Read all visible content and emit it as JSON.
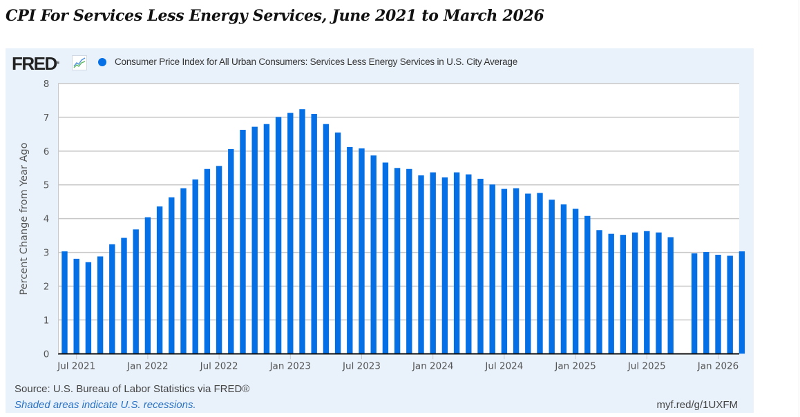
{
  "page": {
    "title": "CPI For Services Less Energy Services, June 2021 to March 2026"
  },
  "fred": {
    "logo_text": "FRED",
    "logo_mark": "®",
    "icon": "line-chart-icon",
    "legend_label": "Consumer Price Index for All Urban Consumers: Services Less Energy Services in U.S. City Average",
    "series_color": "#0570e6",
    "source_text": "Source: U.S. Bureau of Labor Statistics via FRED®",
    "recession_note": "Shaded areas indicate U.S. recessions.",
    "short_link": "myf.red/g/1UXFM"
  },
  "chart_data": {
    "type": "bar",
    "title": "CPI For Services Less Energy Services, June 2021 to March 2026",
    "xlabel": "",
    "ylabel": "Percent Change from Year Ago",
    "ylim": [
      0,
      8
    ],
    "yticks": [
      0,
      1,
      2,
      3,
      4,
      5,
      6,
      7,
      8
    ],
    "grid": true,
    "legend": "top-left",
    "x_tick_labels": [
      "Jul 2021",
      "Jan 2022",
      "Jul 2022",
      "Jan 2023",
      "Jul 2023",
      "Jan 2024",
      "Jul 2024",
      "Jan 2025",
      "Jul 2025",
      "Jan 2026"
    ],
    "categories": [
      "Jun 2021",
      "Jul 2021",
      "Aug 2021",
      "Sep 2021",
      "Oct 2021",
      "Nov 2021",
      "Dec 2021",
      "Jan 2022",
      "Feb 2022",
      "Mar 2022",
      "Apr 2022",
      "May 2022",
      "Jun 2022",
      "Jul 2022",
      "Aug 2022",
      "Sep 2022",
      "Oct 2022",
      "Nov 2022",
      "Dec 2022",
      "Jan 2023",
      "Feb 2023",
      "Mar 2023",
      "Apr 2023",
      "May 2023",
      "Jun 2023",
      "Jul 2023",
      "Aug 2023",
      "Sep 2023",
      "Oct 2023",
      "Nov 2023",
      "Dec 2023",
      "Jan 2024",
      "Feb 2024",
      "Mar 2024",
      "Apr 2024",
      "May 2024",
      "Jun 2024",
      "Jul 2024",
      "Aug 2024",
      "Sep 2024",
      "Oct 2024",
      "Nov 2024",
      "Dec 2024",
      "Jan 2025",
      "Feb 2025",
      "Mar 2025",
      "Apr 2025",
      "May 2025",
      "Jun 2025",
      "Jul 2025",
      "Aug 2025",
      "Sep 2025",
      "Oct 2025",
      "Nov 2025",
      "Dec 2025",
      "Jan 2026",
      "Feb 2026",
      "Mar 2026"
    ],
    "series": [
      {
        "name": "Consumer Price Index for All Urban Consumers: Services Less Energy Services in U.S. City Average",
        "values": [
          3.03,
          2.81,
          2.71,
          2.88,
          3.24,
          3.43,
          3.68,
          4.04,
          4.36,
          4.63,
          4.9,
          5.16,
          5.47,
          5.56,
          6.06,
          6.63,
          6.72,
          6.8,
          7.01,
          7.13,
          7.24,
          7.1,
          6.8,
          6.55,
          6.12,
          6.08,
          5.87,
          5.66,
          5.5,
          5.47,
          5.28,
          5.37,
          5.22,
          5.37,
          5.31,
          5.18,
          5.01,
          4.88,
          4.9,
          4.74,
          4.76,
          4.56,
          4.42,
          4.29,
          4.08,
          3.66,
          3.55,
          3.52,
          3.59,
          3.63,
          3.59,
          3.45,
          null,
          2.97,
          3.01,
          2.93,
          2.9,
          3.03
        ]
      }
    ]
  }
}
